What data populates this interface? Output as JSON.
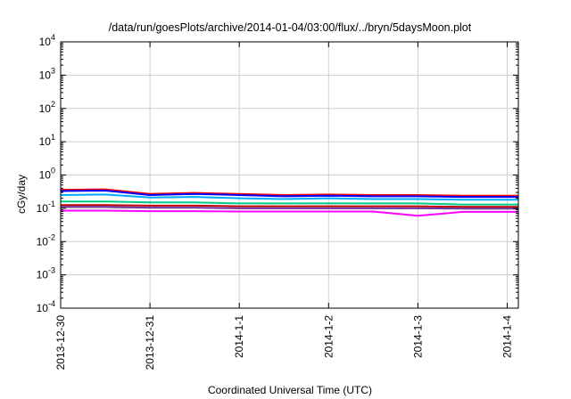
{
  "chart_data": {
    "type": "line",
    "title": "/data/run/goesPlots/archive/2014-01-04/03:00/flux/../bryn/5daysMoon.plot",
    "xlabel": "Coordinated Universal Time (UTC)",
    "ylabel": "cGy/day",
    "y_scale": "log",
    "ylim_exponents": [
      -4,
      4
    ],
    "y_ticks": [
      {
        "base": "10",
        "exp": "-4"
      },
      {
        "base": "10",
        "exp": "-3"
      },
      {
        "base": "10",
        "exp": "-2"
      },
      {
        "base": "10",
        "exp": "-1"
      },
      {
        "base": "10",
        "exp": "0"
      },
      {
        "base": "10",
        "exp": "1"
      },
      {
        "base": "10",
        "exp": "2"
      },
      {
        "base": "10",
        "exp": "3"
      },
      {
        "base": "10",
        "exp": "4"
      }
    ],
    "xlim": [
      "2013-12-30",
      "2014-01-04T03:00"
    ],
    "x_ticks": [
      {
        "label": "2013-12-30",
        "date": "2013-12-30"
      },
      {
        "label": "2013-12-31",
        "date": "2013-12-31"
      },
      {
        "label": "2014-1-1",
        "date": "2014-01-01"
      },
      {
        "label": "2014-1-2",
        "date": "2014-01-02"
      },
      {
        "label": "2014-1-3",
        "date": "2014-01-03"
      },
      {
        "label": "2014-1-4",
        "date": "2014-01-04"
      }
    ],
    "grid": true,
    "legend": "none",
    "series": [
      {
        "color": "#ff0000",
        "x": [
          "2013-12-30",
          "2013-12-30T12:00",
          "2013-12-31",
          "2013-12-31T12:00",
          "2014-01-01",
          "2014-01-01T12:00",
          "2014-01-02",
          "2014-01-02T12:00",
          "2014-01-03",
          "2014-01-03T12:00",
          "2014-01-04",
          "2014-01-04T03:00"
        ],
        "values": [
          0.36,
          0.37,
          0.27,
          0.29,
          0.27,
          0.25,
          0.26,
          0.25,
          0.25,
          0.24,
          0.24,
          0.24
        ]
      },
      {
        "color": "#0000ff",
        "x": [
          "2013-12-30",
          "2013-12-30T12:00",
          "2013-12-31",
          "2013-12-31T12:00",
          "2014-01-01",
          "2014-01-01T12:00",
          "2014-01-02",
          "2014-01-02T12:00",
          "2014-01-03",
          "2014-01-03T12:00",
          "2014-01-04",
          "2014-01-04T03:00"
        ],
        "values": [
          0.33,
          0.34,
          0.25,
          0.27,
          0.25,
          0.23,
          0.24,
          0.23,
          0.23,
          0.22,
          0.22,
          0.22
        ]
      },
      {
        "color": "#00aaff",
        "x": [
          "2013-12-30",
          "2013-12-30T12:00",
          "2013-12-31",
          "2013-12-31T12:00",
          "2014-01-01",
          "2014-01-01T12:00",
          "2014-01-02",
          "2014-01-02T12:00",
          "2014-01-03",
          "2014-01-03T12:00",
          "2014-01-04",
          "2014-01-04T03:00"
        ],
        "values": [
          0.25,
          0.26,
          0.21,
          0.22,
          0.2,
          0.19,
          0.2,
          0.19,
          0.19,
          0.18,
          0.18,
          0.18
        ]
      },
      {
        "color": "#00cc88",
        "x": [
          "2013-12-30",
          "2013-12-30T12:00",
          "2013-12-31",
          "2013-12-31T12:00",
          "2014-01-01",
          "2014-01-01T12:00",
          "2014-01-02",
          "2014-01-02T12:00",
          "2014-01-03",
          "2014-01-03T12:00",
          "2014-01-04",
          "2014-01-04T03:00"
        ],
        "values": [
          0.16,
          0.16,
          0.15,
          0.15,
          0.14,
          0.14,
          0.14,
          0.14,
          0.14,
          0.13,
          0.13,
          0.13
        ]
      },
      {
        "color": "#c00000",
        "x": [
          "2013-12-30",
          "2013-12-30T12:00",
          "2013-12-31",
          "2013-12-31T12:00",
          "2014-01-01",
          "2014-01-01T12:00",
          "2014-01-02",
          "2014-01-02T12:00",
          "2014-01-03",
          "2014-01-03T12:00",
          "2014-01-04",
          "2014-01-04T03:00"
        ],
        "values": [
          0.125,
          0.125,
          0.12,
          0.12,
          0.115,
          0.115,
          0.115,
          0.115,
          0.115,
          0.11,
          0.11,
          0.11
        ]
      },
      {
        "color": "#7030a0",
        "x": [
          "2013-12-30",
          "2013-12-30T12:00",
          "2013-12-31",
          "2013-12-31T12:00",
          "2014-01-01",
          "2014-01-01T12:00",
          "2014-01-02",
          "2014-01-02T12:00",
          "2014-01-03",
          "2014-01-03T12:00",
          "2014-01-04",
          "2014-01-04T03:00"
        ],
        "values": [
          0.11,
          0.11,
          0.105,
          0.105,
          0.1,
          0.1,
          0.1,
          0.1,
          0.1,
          0.098,
          0.098,
          0.098
        ]
      },
      {
        "color": "#ff00ff",
        "x": [
          "2013-12-30",
          "2013-12-30T12:00",
          "2013-12-31",
          "2013-12-31T12:00",
          "2014-01-01",
          "2014-01-01T12:00",
          "2014-01-02",
          "2014-01-02T12:00",
          "2014-01-03",
          "2014-01-03T12:00",
          "2014-01-04",
          "2014-01-04T03:00"
        ],
        "values": [
          0.085,
          0.085,
          0.082,
          0.082,
          0.08,
          0.08,
          0.08,
          0.08,
          0.06,
          0.078,
          0.078,
          0.078
        ]
      }
    ]
  }
}
